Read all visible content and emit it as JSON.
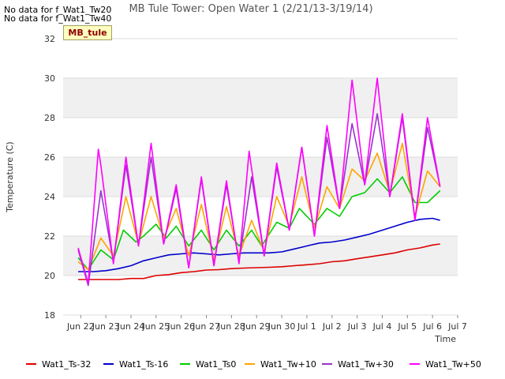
{
  "chart_data": {
    "type": "line",
    "title": "MB Tule Tower: Open Water 1 (2/21/13-3/19/14)",
    "xlabel": "Time",
    "ylabel": "Temperature (C)",
    "ylim": [
      18,
      32
    ],
    "yticks": [
      18,
      20,
      22,
      24,
      26,
      28,
      30,
      32
    ],
    "xlim": [
      -0.7,
      15
    ],
    "xticks": [
      0,
      1,
      2,
      3,
      4,
      5,
      6,
      7,
      8,
      9,
      10,
      11,
      12,
      13,
      14,
      15
    ],
    "xtick_labels": [
      "Jun 22",
      "Jun 23",
      "Jun 24",
      "Jun 25",
      "Jun 26",
      "Jun 27",
      "Jun 28",
      "Jun 29",
      "Jun 30",
      "Jul 1",
      "Jul 2",
      "Jul 3",
      "Jul 4",
      "Jul 5",
      "Jul 6",
      "Jul 7"
    ],
    "grid": true,
    "legend_position": "bottom",
    "series": [
      {
        "name": "Wat1_Ts-32",
        "color": "#dd0000",
        "x": [
          -0.1,
          0.5,
          1,
          1.5,
          2,
          2.5,
          3,
          3.5,
          4,
          4.5,
          5,
          5.5,
          6,
          6.5,
          7,
          7.5,
          8,
          8.5,
          9,
          9.5,
          10,
          10.5,
          11,
          11.5,
          12,
          12.5,
          13,
          13.5,
          14,
          14.3
        ],
        "y": [
          19.8,
          19.8,
          19.8,
          19.8,
          19.85,
          19.85,
          20.0,
          20.05,
          20.15,
          20.2,
          20.28,
          20.3,
          20.35,
          20.38,
          20.4,
          20.42,
          20.45,
          20.5,
          20.55,
          20.6,
          20.7,
          20.75,
          20.85,
          20.95,
          21.05,
          21.15,
          21.3,
          21.4,
          21.55,
          21.6
        ]
      },
      {
        "name": "Wat1_Ts-16",
        "color": "#0000cc",
        "x": [
          -0.1,
          0.5,
          1,
          1.5,
          2,
          2.5,
          3,
          3.5,
          4,
          4.5,
          5,
          5.5,
          6,
          6.5,
          7,
          7.5,
          8,
          8.5,
          9,
          9.5,
          10,
          10.5,
          11,
          11.5,
          12,
          12.5,
          13,
          13.5,
          14,
          14.3
        ],
        "y": [
          20.2,
          20.2,
          20.25,
          20.35,
          20.5,
          20.75,
          20.9,
          21.05,
          21.1,
          21.15,
          21.1,
          21.05,
          21.1,
          21.15,
          21.15,
          21.15,
          21.2,
          21.35,
          21.5,
          21.65,
          21.7,
          21.8,
          21.95,
          22.1,
          22.3,
          22.5,
          22.7,
          22.85,
          22.9,
          22.8
        ]
      },
      {
        "name": "Wat1_Ts0",
        "color": "#00cc00",
        "x": [
          -0.1,
          0.3,
          0.8,
          1.3,
          1.7,
          2.2,
          2.5,
          3,
          3.4,
          3.8,
          4.3,
          4.8,
          5.3,
          5.8,
          6.3,
          6.8,
          7.2,
          7.8,
          8.3,
          8.7,
          9.3,
          9.8,
          10.3,
          10.8,
          11.3,
          11.8,
          12.3,
          12.8,
          13.3,
          13.8,
          14.3
        ],
        "y": [
          20.9,
          20.3,
          21.3,
          20.8,
          22.3,
          21.7,
          22.0,
          22.6,
          21.9,
          22.5,
          21.5,
          22.3,
          21.3,
          22.3,
          21.5,
          22.3,
          21.5,
          22.7,
          22.4,
          23.4,
          22.6,
          23.4,
          23.0,
          24.0,
          24.2,
          24.9,
          24.2,
          25.0,
          23.7,
          23.7,
          24.3
        ]
      },
      {
        "name": "Wat1_Tw+10",
        "color": "#ffa500",
        "x": [
          -0.1,
          0.3,
          0.8,
          1.3,
          1.8,
          2.3,
          2.8,
          3.3,
          3.8,
          4.3,
          4.8,
          5.3,
          5.8,
          6.3,
          6.8,
          7.3,
          7.8,
          8.3,
          8.8,
          9.3,
          9.8,
          10.3,
          10.8,
          11.3,
          11.8,
          12.3,
          12.8,
          13.3,
          13.8,
          14.3
        ],
        "y": [
          20.7,
          20.3,
          21.9,
          21.0,
          24.0,
          21.6,
          24.0,
          21.9,
          23.4,
          21.0,
          23.6,
          20.8,
          23.5,
          21.0,
          22.8,
          21.2,
          24.0,
          22.5,
          25.0,
          22.4,
          24.5,
          23.4,
          25.4,
          24.8,
          26.2,
          24.2,
          26.7,
          23.0,
          25.3,
          24.5
        ]
      },
      {
        "name": "Wat1_Tw+30",
        "color": "#9933cc",
        "x": [
          -0.1,
          0.3,
          0.8,
          1.3,
          1.8,
          2.3,
          2.8,
          3.3,
          3.8,
          4.3,
          4.8,
          5.3,
          5.8,
          6.3,
          6.8,
          7.3,
          7.8,
          8.3,
          8.8,
          9.3,
          9.8,
          10.3,
          10.8,
          11.3,
          11.8,
          12.3,
          12.8,
          13.3,
          13.8,
          14.3
        ],
        "y": [
          21.3,
          19.5,
          24.3,
          20.7,
          25.6,
          21.5,
          26.0,
          21.6,
          24.4,
          20.4,
          24.9,
          20.5,
          24.6,
          20.7,
          25.0,
          21.0,
          25.5,
          22.3,
          26.5,
          22.0,
          27.0,
          23.4,
          27.7,
          24.6,
          28.2,
          24.0,
          28.0,
          22.8,
          27.5,
          24.5
        ]
      },
      {
        "name": "Wat1_Tw+50",
        "color": "#ff00ff",
        "x": [
          -0.1,
          0.3,
          0.7,
          0.8,
          1.3,
          1.8,
          2.3,
          2.8,
          3.3,
          3.8,
          4.3,
          4.8,
          5.3,
          5.8,
          6.3,
          6.7,
          7.3,
          7.8,
          8.3,
          8.8,
          9.3,
          9.8,
          10.3,
          10.8,
          11.3,
          11.8,
          12.3,
          12.8,
          13.3,
          13.8,
          14.3
        ],
        "y": [
          21.4,
          19.6,
          26.4,
          25.6,
          20.6,
          26.0,
          21.5,
          26.7,
          21.6,
          24.6,
          20.4,
          25.0,
          20.5,
          24.8,
          20.6,
          26.3,
          21.0,
          25.7,
          22.3,
          26.5,
          22.0,
          27.6,
          23.4,
          29.9,
          24.6,
          30.0,
          24.0,
          28.2,
          22.8,
          28.0,
          24.5
        ]
      }
    ]
  },
  "no_data_lines": [
    "No data for f_Wat1_Tw20",
    "No data for f_Wat1_Tw40"
  ],
  "site_badge": "MB_tule"
}
